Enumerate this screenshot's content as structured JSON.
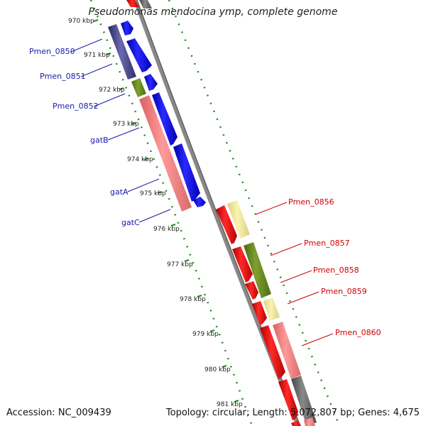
{
  "title": "Pseudomonas mendocina ymp, complete genome",
  "accession": "Accession: NC_009439",
  "summary": "Topology: circular; Length: 5,072,807 bp; Genes: 4,675",
  "ticks": [
    "970 kbp",
    "971 kbp",
    "972 kbp",
    "973 kbp",
    "974 kbp",
    "975 kbp",
    "976 kbp",
    "977 kbp",
    "978 kbp",
    "979 kbp",
    "980 kbp",
    "981 kbp"
  ],
  "left_labels": [
    "Pmen_0850",
    "Pmen_0851",
    "Pmen_0852",
    "gatB",
    "gatA",
    "gatC"
  ],
  "right_labels": [
    "Pmen_0856",
    "Pmen_0857",
    "Pmen_0858",
    "Pmen_0859",
    "Pmen_0860"
  ],
  "colors": {
    "label_left": "#1a1aa8",
    "label_right": "#cc0000",
    "forward_cds": "#0000ee",
    "reverse_cds": "#ee0000",
    "gc_skew_dots": "#228b22"
  }
}
